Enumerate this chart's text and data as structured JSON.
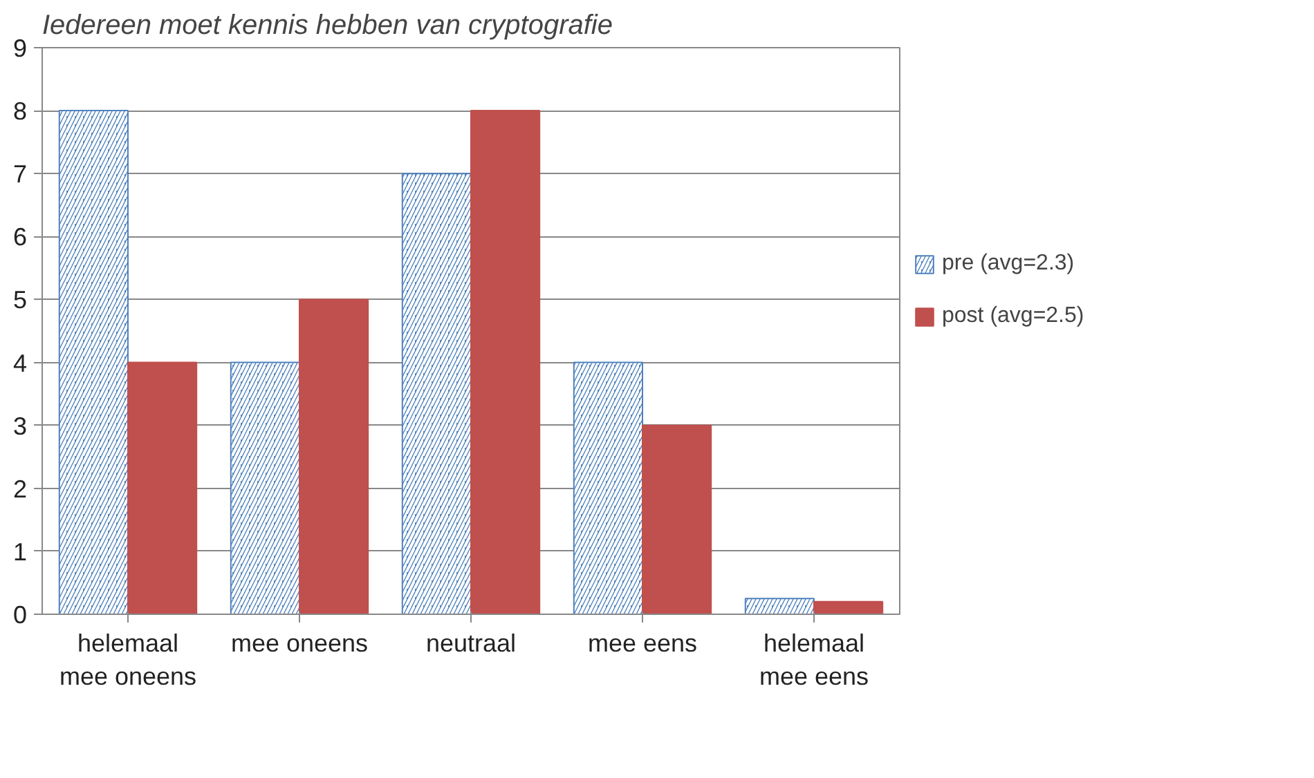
{
  "chart_data": {
    "type": "bar",
    "title": "Iedereen moet kennis hebben van cryptografie",
    "categories": [
      "helemaal\nmee oneens",
      "mee oneens",
      "neutraal",
      "mee eens",
      "helemaal\nmee eens"
    ],
    "series": [
      {
        "name": "pre (avg=2.3)",
        "color": "#4f81bd",
        "values": [
          8,
          4,
          7,
          4,
          0.25
        ]
      },
      {
        "name": "post (avg=2.5)",
        "color": "#c0504d",
        "values": [
          4,
          5,
          8,
          3,
          0.2
        ]
      }
    ],
    "ylim": [
      0,
      9
    ],
    "yticks": [
      0,
      1,
      2,
      3,
      4,
      5,
      6,
      7,
      8,
      9
    ],
    "grid": "y",
    "legend": "right"
  }
}
